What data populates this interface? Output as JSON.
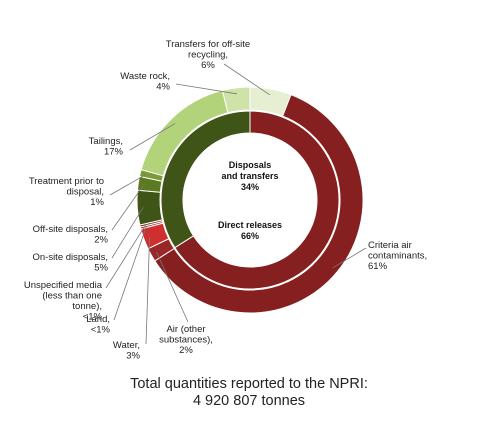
{
  "chart_data": {
    "type": "pie",
    "subtype": "two-level donut",
    "inner_ring": [
      {
        "lines": [
          "Disposals",
          "and transfers",
          "34%"
        ],
        "value": 34,
        "color": "#3f5417"
      },
      {
        "lines": [
          "Direct releases",
          "66%"
        ],
        "value": 66,
        "color": "#861f1f"
      }
    ],
    "outer_ring": [
      {
        "lines": [
          "Transfers for off-site",
          "recycling,",
          "6%"
        ],
        "value": 6,
        "color": "#e6efd1"
      },
      {
        "lines": [
          "Criteria air",
          "contaminants,",
          "61%"
        ],
        "value": 61,
        "color": "#861f1f"
      },
      {
        "lines": [
          "Air (other",
          "substances),",
          "2%"
        ],
        "value": 2,
        "color": "#9a2727"
      },
      {
        "lines": [
          "Water,",
          "3%"
        ],
        "value": 3,
        "color": "#cf2f2f"
      },
      {
        "lines": [
          "Land,",
          "<1%"
        ],
        "value": 0.3,
        "color": "#b52a2a"
      },
      {
        "lines": [
          "Unspecified media",
          "(less than one",
          "tonne),",
          "<1%"
        ],
        "value": 0.3,
        "color": "#7a1c1c"
      },
      {
        "lines": [
          "On-site disposals,",
          "5%"
        ],
        "value": 5,
        "color": "#3f5417"
      },
      {
        "lines": [
          "Off-site disposals,",
          "2%"
        ],
        "value": 2,
        "color": "#5b7a22"
      },
      {
        "lines": [
          "Treatment prior to",
          "disposal,",
          "1%"
        ],
        "value": 1,
        "color": "#7a9a38"
      },
      {
        "lines": [
          "Tailings,",
          "17%"
        ],
        "value": 17,
        "color": "#b3d37a"
      },
      {
        "lines": [
          "Waste rock,",
          "4%"
        ],
        "value": 4,
        "color": "#cfe2a8"
      }
    ]
  },
  "footer": {
    "line1": "Total quantities reported to the NPRI:",
    "line2": "4 920 807 tonnes"
  }
}
